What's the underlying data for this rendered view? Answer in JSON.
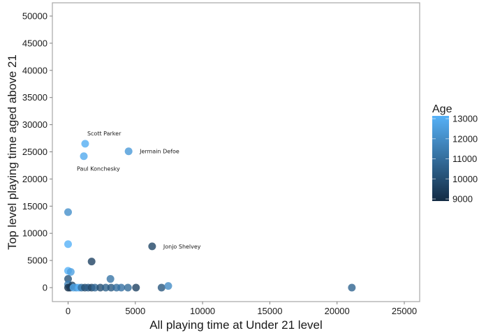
{
  "chart_data": {
    "type": "scatter",
    "title": "",
    "xlabel": "All playing time at Under 21 level",
    "ylabel": "Top level playing time aged above 21",
    "xlim": [
      -1100,
      26200
    ],
    "ylim": [
      -2500,
      52000
    ],
    "x_ticks": [
      0,
      5000,
      10000,
      15000,
      20000,
      25000
    ],
    "y_ticks": [
      0,
      5000,
      10000,
      15000,
      20000,
      25000,
      30000,
      35000,
      40000,
      45000,
      50000
    ],
    "grid": false,
    "legend": {
      "title": "Age",
      "type": "colorbar",
      "position": "right",
      "range": [
        9000,
        13000
      ],
      "ticks": [
        9000,
        10000,
        11000,
        12000,
        13000
      ],
      "color_low": "#132B43",
      "color_high": "#56B1F7"
    },
    "points": [
      {
        "x": 1270,
        "y": 26500,
        "age": 12900,
        "label": "Scott Parker"
      },
      {
        "x": 1170,
        "y": 24200,
        "age": 12800,
        "label": "Paul Konchesky"
      },
      {
        "x": 4500,
        "y": 25100,
        "age": 12300,
        "label": "Jermain Defoe"
      },
      {
        "x": 6250,
        "y": 7600,
        "age": 9800,
        "label": "Jonjo Shelvey"
      },
      {
        "x": 0,
        "y": 13900,
        "age": 12000,
        "label": ""
      },
      {
        "x": 0,
        "y": 8000,
        "age": 13000,
        "label": ""
      },
      {
        "x": 1750,
        "y": 4800,
        "age": 9700,
        "label": ""
      },
      {
        "x": 0,
        "y": 3100,
        "age": 13000,
        "label": ""
      },
      {
        "x": 200,
        "y": 2900,
        "age": 12500,
        "label": ""
      },
      {
        "x": 0,
        "y": 1600,
        "age": 10200,
        "label": ""
      },
      {
        "x": 3150,
        "y": 1600,
        "age": 11200,
        "label": ""
      },
      {
        "x": 0,
        "y": 600,
        "age": 11500,
        "label": ""
      },
      {
        "x": 300,
        "y": 400,
        "age": 9600,
        "label": ""
      },
      {
        "x": 0,
        "y": 0,
        "age": 9200,
        "label": ""
      },
      {
        "x": 150,
        "y": 0,
        "age": 9400,
        "label": ""
      },
      {
        "x": 400,
        "y": 0,
        "age": 12800,
        "label": ""
      },
      {
        "x": 600,
        "y": 0,
        "age": 12200,
        "label": ""
      },
      {
        "x": 800,
        "y": 0,
        "age": 13000,
        "label": ""
      },
      {
        "x": 1000,
        "y": 0,
        "age": 11000,
        "label": ""
      },
      {
        "x": 1250,
        "y": 0,
        "age": 10000,
        "label": ""
      },
      {
        "x": 1500,
        "y": 0,
        "age": 10500,
        "label": ""
      },
      {
        "x": 1750,
        "y": 0,
        "age": 9800,
        "label": ""
      },
      {
        "x": 2000,
        "y": 0,
        "age": 10800,
        "label": ""
      },
      {
        "x": 2400,
        "y": 0,
        "age": 10000,
        "label": ""
      },
      {
        "x": 2800,
        "y": 0,
        "age": 10600,
        "label": ""
      },
      {
        "x": 3200,
        "y": 0,
        "age": 10300,
        "label": ""
      },
      {
        "x": 3600,
        "y": 0,
        "age": 11000,
        "label": ""
      },
      {
        "x": 3950,
        "y": 0,
        "age": 11100,
        "label": ""
      },
      {
        "x": 4450,
        "y": 0,
        "age": 10900,
        "label": ""
      },
      {
        "x": 5050,
        "y": 0,
        "age": 9700,
        "label": ""
      },
      {
        "x": 6950,
        "y": 0,
        "age": 10300,
        "label": ""
      },
      {
        "x": 7450,
        "y": 300,
        "age": 11900,
        "label": ""
      },
      {
        "x": 21100,
        "y": 0,
        "age": 10700,
        "label": ""
      }
    ]
  }
}
